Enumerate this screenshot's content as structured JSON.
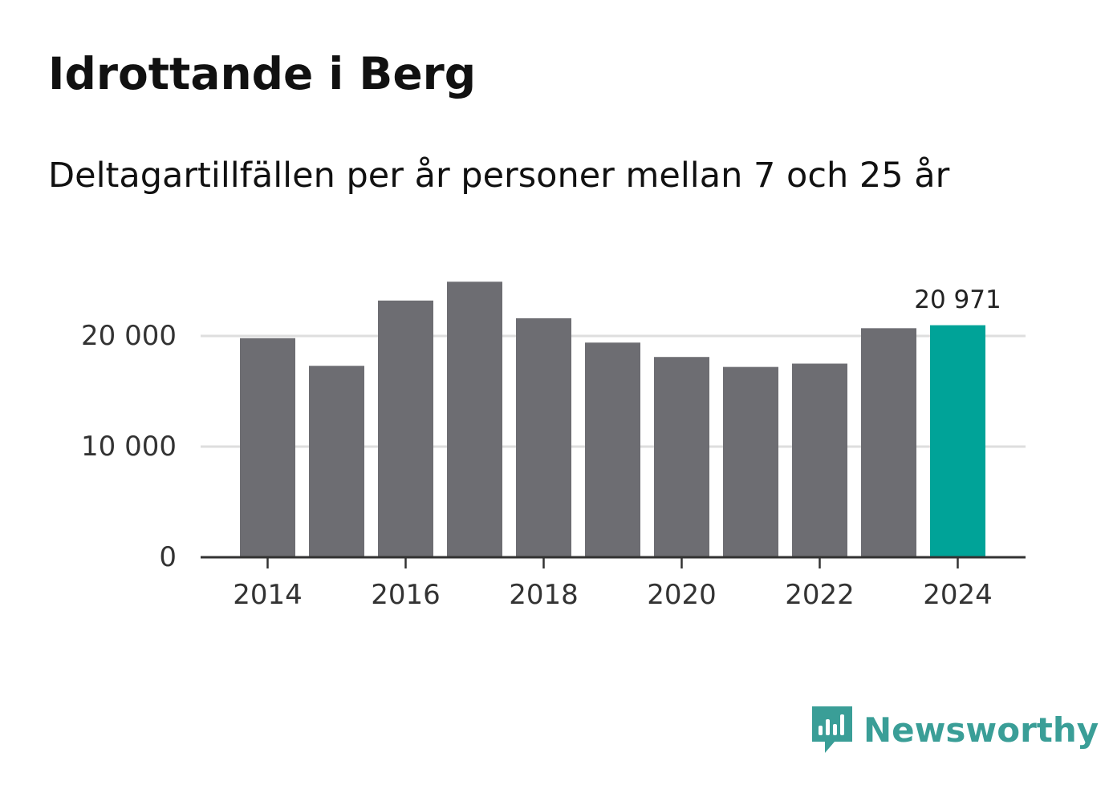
{
  "header": {
    "title": "Idrottande i Berg",
    "subtitle": "Deltagartillfällen per år personer mellan 7 och 25 år"
  },
  "colors": {
    "bar_default": "#6d6d72",
    "bar_highlight": "#00a398",
    "brand": "#3a9e97"
  },
  "chart_data": {
    "type": "bar",
    "title": "Idrottande i Berg",
    "subtitle": "Deltagartillfällen per år personer mellan 7 och 25 år",
    "xlabel": "",
    "ylabel": "",
    "categories": [
      "2014",
      "2015",
      "2016",
      "2017",
      "2018",
      "2019",
      "2020",
      "2021",
      "2022",
      "2023",
      "2024"
    ],
    "values": [
      19800,
      17300,
      23200,
      24900,
      21600,
      19400,
      18100,
      17200,
      17500,
      20700,
      20971
    ],
    "x_tick_labels": [
      "2014",
      "2016",
      "2018",
      "2020",
      "2022",
      "2024"
    ],
    "y_ticks": [
      0,
      10000,
      20000
    ],
    "y_tick_labels": [
      "0",
      "10 000",
      "20 000"
    ],
    "ylim": [
      0,
      25000
    ],
    "grid": true,
    "highlight_index": 10,
    "annotation": {
      "index": 10,
      "text": "20 971"
    }
  },
  "brand": {
    "name": "Newsworthy",
    "logo_icon": "newsworthy-logo-icon"
  }
}
